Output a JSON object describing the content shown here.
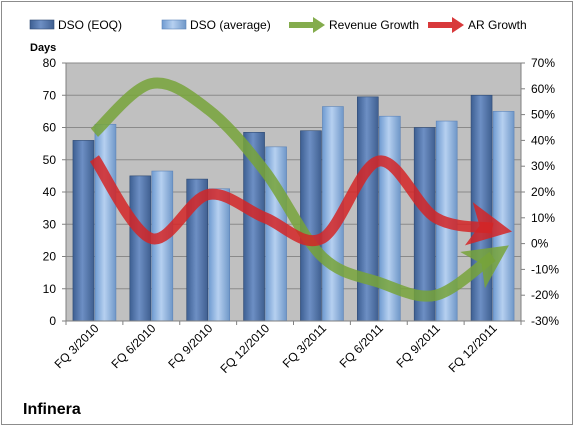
{
  "chart_data": {
    "type": "bar",
    "title": "Infinera",
    "ylabel": "Days",
    "categories": [
      "FQ 3/2010",
      "FQ 6/2010",
      "FQ 9/2010",
      "FQ 12/2010",
      "FQ 3/2011",
      "FQ 6/2011",
      "FQ 9/2011",
      "FQ 12/2011"
    ],
    "ylim": [
      0,
      80
    ],
    "yticks": [
      0,
      10,
      20,
      30,
      40,
      50,
      60,
      70,
      80
    ],
    "y2lim": [
      -30,
      70
    ],
    "y2ticks": [
      "-30%",
      "-20%",
      "-10%",
      "0%",
      "10%",
      "20%",
      "30%",
      "40%",
      "50%",
      "60%",
      "70%"
    ],
    "grid": true,
    "legend_position": "top",
    "series": [
      {
        "name": "DSO (EOQ)",
        "values": [
          56,
          45,
          44,
          58.5,
          59,
          69.5,
          60,
          70
        ],
        "color": "#4a6fa5"
      },
      {
        "name": "DSO (average)",
        "values": [
          61,
          46.5,
          41,
          54,
          66.5,
          63.5,
          62,
          65
        ],
        "color": "#8fb4e3"
      }
    ],
    "trend_series": [
      {
        "name": "Revenue Growth",
        "values": [
          43,
          62,
          52,
          28,
          -5,
          -15,
          -20,
          -5
        ],
        "unit": "%",
        "color": "#77a33a"
      },
      {
        "name": "AR Growth",
        "values": [
          33,
          2,
          19,
          10,
          2,
          32,
          10,
          6
        ],
        "unit": "%",
        "color": "#d42426"
      }
    ]
  }
}
